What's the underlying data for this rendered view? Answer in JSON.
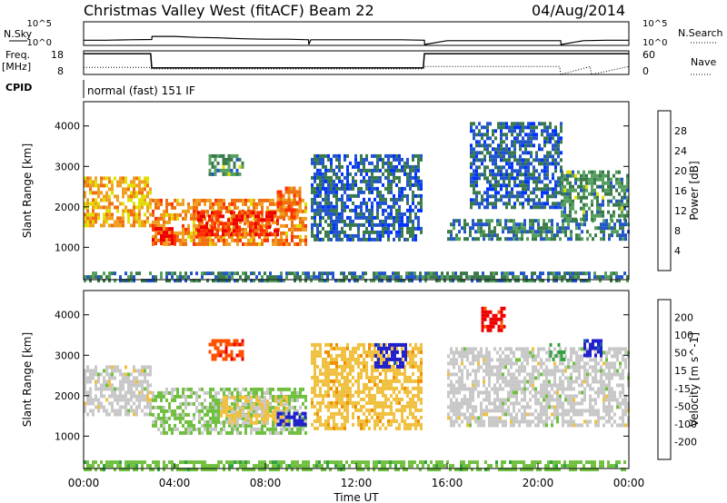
{
  "header": {
    "station": "Christmas Valley West (fitACF)",
    "beam": "Beam 22",
    "date": "04/Aug/2014"
  },
  "panel_labels": {
    "nsky": "N.Sky",
    "nsearch": "N.Search",
    "freq_line1": "Freq.",
    "freq_line2": "[MHz]",
    "nave": "Nave",
    "cpid": "CPID",
    "cpid_text": "normal (fast) 151 IF"
  },
  "colors": {
    "power_scale": [
      "#0033ff",
      "#2255cc",
      "#3a7a4a",
      "#55a060",
      "#e0e000",
      "#f0a020",
      "#f07010",
      "#ff3000",
      "#ee0000"
    ],
    "velocity_scale": [
      "#2020cc",
      "#2060aa",
      "#30a040",
      "#70c040",
      "#c8c8c8",
      "#f0c040",
      "#f09000",
      "#ff5000",
      "#ee0000"
    ]
  },
  "chart_data": [
    {
      "type": "line",
      "name": "noise-panel",
      "ylabel_left": "N.Sky",
      "ylabel_right": "N.Search",
      "yticks_left": [
        "10^5",
        "10^0"
      ],
      "yticks_right": [
        "10^5",
        "10^0"
      ],
      "x": [
        0,
        1,
        2,
        3,
        3.01,
        4,
        5,
        6,
        7,
        8,
        9,
        9.9,
        9.91,
        10,
        11,
        12,
        13,
        14,
        15,
        15.01,
        16,
        17,
        18,
        19,
        20,
        21,
        21.01,
        22,
        23,
        24
      ],
      "y": [
        1.1,
        1.1,
        1.2,
        1.25,
        1.9,
        1.9,
        1.7,
        1.6,
        1.4,
        1.3,
        1.3,
        1.2,
        0.2,
        1.2,
        1.2,
        1.2,
        1.2,
        1.2,
        1.1,
        0.2,
        1.0,
        1.0,
        1.0,
        1.0,
        1.0,
        1.0,
        0.2,
        1.0,
        1.1,
        1.1
      ]
    },
    {
      "type": "line",
      "name": "frequency-panel",
      "ylabel_left": "Freq. [MHz]",
      "ylabel_right": "Nave",
      "yticks_left": [
        "18",
        "8"
      ],
      "yticks_right": [
        "60",
        "0"
      ],
      "ylim_left": [
        8,
        18
      ],
      "ylim_right": [
        0,
        60
      ],
      "x": [
        0,
        2.95,
        3.0,
        14.95,
        15.0,
        20.95,
        21.0,
        22.3,
        22.35,
        24
      ],
      "freq": [
        16.8,
        16.8,
        10.8,
        10.8,
        16.8,
        16.8,
        16.8,
        16.8,
        16.8,
        16.8
      ],
      "nave": [
        18,
        18,
        14,
        14,
        20,
        20,
        0,
        20,
        0,
        20
      ]
    },
    {
      "type": "heatmap",
      "name": "power",
      "ylabel": "Slant Range [km]",
      "colorbar_label": "Power [dB]",
      "colorbar_ticks": [
        "28",
        "24",
        "20",
        "16",
        "12",
        "8",
        "4"
      ],
      "colorbar_range": [
        0,
        30
      ],
      "xlim": [
        0,
        24
      ],
      "ylim": [
        200,
        4600
      ],
      "yticks": [
        1000,
        2000,
        3000,
        4000
      ],
      "regions": [
        {
          "t0": 0,
          "t1": 2.9,
          "r0": 1500,
          "r1": 2750,
          "v": 18
        },
        {
          "t0": 3.0,
          "t1": 9.8,
          "r0": 1050,
          "r1": 2200,
          "v": 20
        },
        {
          "t0": 5.0,
          "t1": 8.5,
          "r0": 1300,
          "r1": 1900,
          "v": 26
        },
        {
          "t0": 3.0,
          "t1": 4.0,
          "r0": 1100,
          "r1": 1500,
          "v": 28
        },
        {
          "t0": 5.5,
          "t1": 7.0,
          "r0": 2800,
          "r1": 3300,
          "v": 10
        },
        {
          "t0": 8.5,
          "t1": 9.5,
          "r0": 1700,
          "r1": 2500,
          "v": 22
        },
        {
          "t0": 10.0,
          "t1": 14.9,
          "r0": 1200,
          "r1": 3300,
          "v": 6
        },
        {
          "t0": 17.0,
          "t1": 21.0,
          "r0": 2000,
          "r1": 4100,
          "v": 6
        },
        {
          "t0": 16.0,
          "t1": 24.0,
          "r0": 1200,
          "r1": 1700,
          "v": 8
        },
        {
          "t0": 21.0,
          "t1": 24.0,
          "r0": 1700,
          "r1": 2900,
          "v": 10
        },
        {
          "t0": 0,
          "t1": 24,
          "r0": 200,
          "r1": 400,
          "v": 8
        }
      ]
    },
    {
      "type": "heatmap",
      "name": "velocity",
      "ylabel": "Slant Range [km]",
      "colorbar_label": "Velocity [m s^-1]",
      "colorbar_ticks": [
        "200",
        "100",
        "50",
        "15",
        "-15",
        "-50",
        "-100",
        "-200"
      ],
      "colorbar_range": [
        -250,
        250
      ],
      "xlim": [
        0,
        24
      ],
      "ylim": [
        200,
        4600
      ],
      "yticks": [
        1000,
        2000,
        3000,
        4000
      ],
      "xticks": [
        "00:00",
        "04:00",
        "08:00",
        "12:00",
        "16:00",
        "20:00",
        "00:00"
      ],
      "xlabel": "Time UT",
      "regions": [
        {
          "t0": 0,
          "t1": 2.9,
          "r0": 1500,
          "r1": 2750,
          "v": 0
        },
        {
          "t0": 3.0,
          "t1": 9.8,
          "r0": 1050,
          "r1": 2200,
          "v": -40
        },
        {
          "t0": 6.0,
          "t1": 9.0,
          "r0": 1300,
          "r1": 2000,
          "v": 40
        },
        {
          "t0": 8.5,
          "t1": 9.8,
          "r0": 1300,
          "r1": 1600,
          "v": -220
        },
        {
          "t0": 5.5,
          "t1": 7.0,
          "r0": 2900,
          "r1": 3400,
          "v": 180
        },
        {
          "t0": 10.0,
          "t1": 14.9,
          "r0": 1200,
          "r1": 3300,
          "v": 60
        },
        {
          "t0": 12.8,
          "t1": 14.2,
          "r0": 2700,
          "r1": 3300,
          "v": -220
        },
        {
          "t0": 17.5,
          "t1": 18.5,
          "r0": 3600,
          "r1": 4200,
          "v": 220
        },
        {
          "t0": 16.0,
          "t1": 24.0,
          "r0": 1300,
          "r1": 3200,
          "v": 0
        },
        {
          "t0": 20.5,
          "t1": 21.2,
          "r0": 2900,
          "r1": 3300,
          "v": -100
        },
        {
          "t0": 22.0,
          "t1": 22.8,
          "r0": 3000,
          "r1": 3400,
          "v": -220
        },
        {
          "t0": 0,
          "t1": 24,
          "r0": 200,
          "r1": 400,
          "v": -60
        }
      ]
    }
  ]
}
